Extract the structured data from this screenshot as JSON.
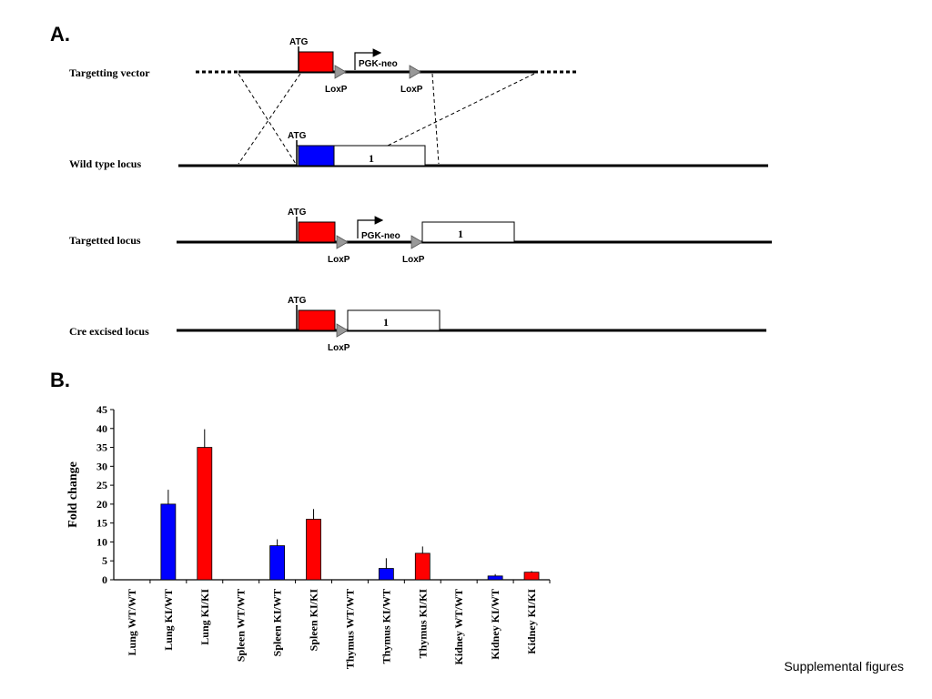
{
  "panel_a": {
    "label": "A.",
    "rows": {
      "targetting_vector": "Targetting vector",
      "wild_type": "Wild type locus",
      "targetted": "Targetted locus",
      "cre_excised": "Cre excised locus"
    },
    "atg": "ATG",
    "loxp": "LoxP",
    "pgk_neo": "PGK-neo",
    "exon": "1"
  },
  "panel_b": {
    "label": "B."
  },
  "chart_data": {
    "type": "bar",
    "title": "",
    "xlabel": "",
    "ylabel": "Fold change",
    "ylim": [
      0,
      45
    ],
    "yticks": [
      0,
      5,
      10,
      15,
      20,
      25,
      30,
      35,
      40,
      45
    ],
    "categories": [
      "Lung WT/WT",
      "Lung KI/WT",
      "Lung KI/KI",
      "Spleen WT/WT",
      "Spleen KI/WT",
      "Spleen KI/KI",
      "Thymus WT/WT",
      "Thymus KI/WT",
      "Thymus KI/KI",
      "Kidney WT/WT",
      "Kidney KI/WT",
      "Kidney KI/KI"
    ],
    "values": [
      0,
      20,
      35,
      0,
      9,
      16,
      0,
      3,
      7,
      0,
      1,
      2
    ],
    "errors": [
      0,
      3.8,
      4.8,
      0,
      1.7,
      2.7,
      0,
      2.7,
      1.8,
      0,
      0.5,
      0.3
    ],
    "colors": [
      "#0000ff",
      "#0000ff",
      "#ff0000",
      "#0000ff",
      "#0000ff",
      "#ff0000",
      "#0000ff",
      "#0000ff",
      "#ff0000",
      "#0000ff",
      "#0000ff",
      "#ff0000"
    ],
    "grid": false,
    "legend": "none"
  },
  "footer": "Supplemental figures",
  "colors": {
    "ki_exon": "#ff0000",
    "wt_exon": "#0000ff",
    "loxp": "#999999"
  }
}
